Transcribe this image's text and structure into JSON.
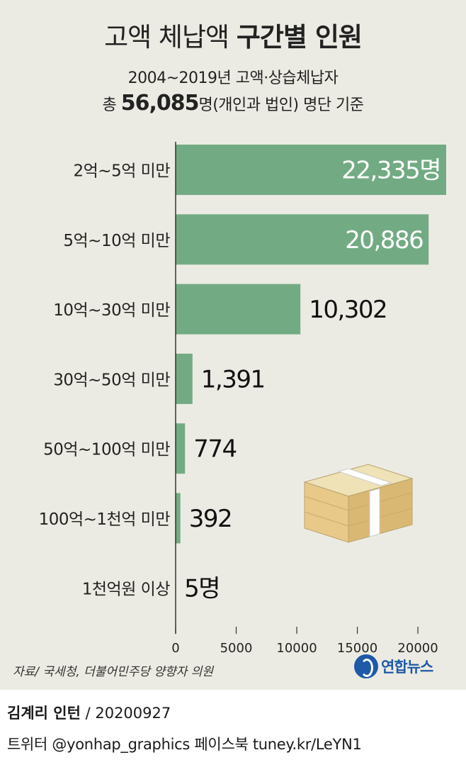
{
  "title": {
    "light": "고액 체납액 ",
    "bold": "구간별 인원"
  },
  "subtitle": {
    "line1": "2004~2019년 고액·상습체납자",
    "line2_pre": "총 ",
    "line2_num": "56,085",
    "line2_post": "명(개인과 법인) 명단 기준"
  },
  "chart_data": {
    "type": "bar",
    "orientation": "horizontal",
    "categories": [
      "2억~5억 미만",
      "5억~10억 미만",
      "10억~30억 미만",
      "30억~50억 미만",
      "50억~100억 미만",
      "100억~1천억 미만",
      "1천억원 이상"
    ],
    "values": [
      22335,
      20886,
      10302,
      1391,
      774,
      392,
      5
    ],
    "value_labels": [
      "22,335명",
      "20,886",
      "10,302",
      "1,391",
      "774",
      "392",
      "5명"
    ],
    "xticks": [
      "0",
      "5000",
      "10000",
      "15000",
      "20000"
    ],
    "xlim": [
      0,
      22335
    ],
    "bar_color": "#72ab83",
    "grid": false
  },
  "source": "자료/ 국세청, 더불어민주당 양향자 의원",
  "logo": {
    "text": "연합뉴스",
    "icon": "yonhap-logo-icon"
  },
  "footer": {
    "author": "김계리 인턴",
    "date_line": " / 20200927",
    "social": "트위터 @yonhap_graphics  페이스북 tuney.kr/LeYN1"
  }
}
